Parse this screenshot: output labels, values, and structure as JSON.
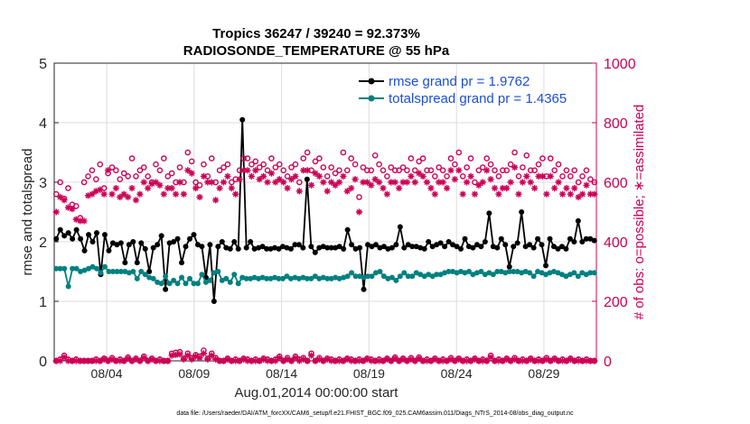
{
  "chart_data": {
    "type": "line",
    "title": "Tropics 36247 / 39240 = 92.373%",
    "subtitle": "RADIOSONDE_TEMPERATURE @ 55 hPa",
    "xlabel": "Aug.01,2014 00:00:00 start",
    "ylabel_left": "rmse and totalspread",
    "ylabel_right": "# of obs: o=possible; ∗=assimilated",
    "ylim_left": [
      0,
      5
    ],
    "ylim_right": [
      0,
      1000
    ],
    "xlim": [
      0,
      31
    ],
    "left_ticks": [
      "0",
      "1",
      "2",
      "3",
      "4",
      "5"
    ],
    "right_ticks": [
      "0",
      "200",
      "400",
      "600",
      "800",
      "1000"
    ],
    "x_ticks": [
      {
        "x": 3,
        "label": "08/04"
      },
      {
        "x": 8,
        "label": "08/09"
      },
      {
        "x": 13,
        "label": "08/14"
      },
      {
        "x": 18,
        "label": "08/19"
      },
      {
        "x": 23,
        "label": "08/24"
      },
      {
        "x": 28,
        "label": "08/29"
      }
    ],
    "legend": [
      {
        "name": "rmse grand pr = 1.9762",
        "color": "#000000"
      },
      {
        "name": "totalspread grand pr = 1.4365",
        "color": "#008080"
      }
    ],
    "series": [
      {
        "name": "rmse",
        "axis": "left",
        "color": "#000000",
        "values": [
          2.05,
          2.2,
          2.1,
          2.15,
          2.05,
          2.2,
          2.05,
          1.85,
          2.12,
          2.0,
          2.15,
          1.45,
          2.12,
          1.85,
          1.98,
          1.95,
          1.98,
          1.65,
          1.95,
          2.0,
          1.65,
          1.98,
          1.88,
          1.5,
          1.9,
          1.95,
          2.1,
          1.2,
          1.98,
          2.0,
          2.05,
          1.65,
          1.92,
          2.05,
          2.12,
          1.95,
          1.92,
          1.4,
          1.95,
          1.0,
          1.92,
          2.0,
          1.9,
          1.88,
          2.0,
          1.88,
          4.05,
          1.9,
          2.0,
          1.88,
          1.9,
          1.92,
          1.88,
          1.88,
          1.9,
          1.88,
          1.92,
          1.9,
          1.88,
          1.95,
          1.95,
          1.9,
          3.05,
          1.92,
          1.82,
          1.9,
          1.92,
          1.9,
          1.9,
          1.9,
          1.92,
          1.88,
          2.2,
          1.95,
          1.88,
          1.9,
          1.2,
          1.95,
          1.92,
          1.95,
          1.9,
          1.92,
          1.88,
          1.9,
          1.95,
          2.25,
          1.9,
          1.95,
          1.92,
          1.92,
          1.9,
          1.88,
          2.0,
          1.92,
          1.95,
          1.98,
          1.92,
          2.0,
          1.95,
          1.92,
          1.88,
          2.05,
          1.92,
          1.9,
          1.95,
          1.92,
          2.0,
          2.48,
          1.92,
          1.9,
          2.05,
          1.95,
          1.58,
          1.92,
          1.98,
          2.5,
          1.92,
          1.95,
          1.9,
          2.05,
          1.95,
          1.6,
          2.05,
          1.92,
          1.88,
          1.92,
          1.88,
          2.05,
          2.0,
          2.35,
          2.0,
          2.05,
          2.05,
          2.02
        ]
      },
      {
        "name": "totalspread",
        "axis": "left",
        "color": "#008080",
        "values": [
          1.55,
          1.55,
          1.55,
          1.25,
          1.55,
          1.55,
          1.5,
          1.52,
          1.55,
          1.58,
          1.55,
          1.48,
          1.58,
          1.5,
          1.5,
          1.5,
          1.5,
          1.5,
          1.48,
          1.5,
          1.38,
          1.5,
          1.45,
          1.4,
          1.38,
          1.32,
          1.3,
          1.42,
          1.3,
          1.35,
          1.3,
          1.4,
          1.3,
          1.38,
          1.3,
          1.3,
          1.45,
          1.32,
          1.35,
          1.48,
          1.5,
          1.35,
          1.38,
          1.32,
          1.45,
          1.3,
          1.4,
          1.38,
          1.38,
          1.4,
          1.38,
          1.4,
          1.38,
          1.38,
          1.4,
          1.38,
          1.38,
          1.42,
          1.38,
          1.4,
          1.38,
          1.4,
          1.38,
          1.38,
          1.42,
          1.38,
          1.4,
          1.38,
          1.38,
          1.4,
          1.38,
          1.4,
          1.42,
          1.48,
          1.42,
          1.42,
          1.4,
          1.42,
          1.42,
          1.48,
          1.5,
          1.42,
          1.38,
          1.4,
          1.35,
          1.42,
          1.48,
          1.42,
          1.42,
          1.48,
          1.45,
          1.42,
          1.45,
          1.42,
          1.45,
          1.45,
          1.48,
          1.5,
          1.5,
          1.48,
          1.5,
          1.48,
          1.5,
          1.45,
          1.48,
          1.5,
          1.45,
          1.48,
          1.45,
          1.5,
          1.5,
          1.48,
          1.5,
          1.5,
          1.5,
          1.48,
          1.5,
          1.48,
          1.42,
          1.5,
          1.48,
          1.45,
          1.48,
          1.5,
          1.48,
          1.45,
          1.42,
          1.45,
          1.48,
          1.42,
          1.48,
          1.45,
          1.48,
          1.48
        ]
      },
      {
        "name": "possible",
        "axis": "right",
        "color": "#cc0055",
        "marker": "circle",
        "values": [
          560,
          600,
          545,
          580,
          525,
          520,
          480,
          600,
          620,
          640,
          610,
          660,
          580,
          630,
          650,
          640,
          610,
          630,
          620,
          680,
          620,
          640,
          650,
          620,
          600,
          660,
          640,
          680,
          620,
          630,
          600,
          650,
          600,
          700,
          670,
          600,
          590,
          660,
          620,
          680,
          600,
          640,
          650,
          660,
          600,
          610,
          640,
          680,
          680,
          660,
          670,
          650,
          660,
          640,
          680,
          650,
          660,
          640,
          620,
          650,
          660,
          600,
          680,
          700,
          640,
          670,
          680,
          650,
          620,
          650,
          630,
          640,
          700,
          640,
          680,
          660,
          550,
          650,
          640,
          640,
          690,
          660,
          640,
          620,
          650,
          640,
          640,
          650,
          640,
          680,
          640,
          670,
          680,
          640,
          640,
          620,
          650,
          640,
          620,
          680,
          660,
          700,
          620,
          650,
          680,
          600,
          640,
          650,
          680,
          660,
          640,
          620,
          640,
          640,
          660,
          700,
          620,
          650,
          690,
          640,
          640,
          660,
          680,
          620,
          680,
          640,
          660,
          620,
          640,
          620,
          640,
          600,
          620,
          640,
          610,
          600
        ]
      },
      {
        "name": "assimilated",
        "axis": "right",
        "color": "#cc0055",
        "marker": "star",
        "values": [
          500,
          550,
          540,
          515,
          510,
          475,
          470,
          470,
          555,
          560,
          570,
          575,
          560,
          640,
          560,
          580,
          550,
          560,
          550,
          580,
          540,
          560,
          600,
          580,
          595,
          600,
          590,
          560,
          580,
          580,
          560,
          600,
          560,
          640,
          630,
          580,
          550,
          620,
          600,
          600,
          540,
          580,
          600,
          620,
          580,
          560,
          610,
          640,
          640,
          620,
          640,
          610,
          620,
          600,
          630,
          600,
          610,
          600,
          580,
          610,
          620,
          570,
          640,
          640,
          590,
          630,
          620,
          600,
          570,
          600,
          590,
          600,
          620,
          570,
          580,
          610,
          500,
          600,
          600,
          590,
          610,
          600,
          580,
          560,
          600,
          600,
          580,
          600,
          600,
          620,
          600,
          630,
          620,
          600,
          580,
          560,
          600,
          600,
          580,
          640,
          610,
          640,
          560,
          600,
          620,
          560,
          590,
          600,
          640,
          610,
          580,
          560,
          580,
          580,
          600,
          650,
          560,
          600,
          620,
          600,
          580,
          620,
          620,
          560,
          620,
          580,
          600,
          560,
          580,
          560,
          580,
          550,
          560,
          590,
          560,
          560
        ]
      },
      {
        "name": "possible_bottom",
        "axis": "right",
        "color": "#cc0055",
        "marker": "circle",
        "values": [
          0,
          5,
          18,
          5,
          0,
          5,
          0,
          0,
          0,
          0,
          5,
          0,
          8,
          0,
          10,
          0,
          5,
          0,
          12,
          0,
          8,
          0,
          15,
          0,
          8,
          0,
          5,
          0,
          0,
          25,
          28,
          30,
          8,
          25,
          10,
          20,
          15,
          35,
          8,
          25,
          10,
          0,
          0,
          8,
          0,
          5,
          0,
          8,
          5,
          0,
          5,
          0,
          8,
          5,
          0,
          5,
          15,
          0,
          10,
          0,
          15,
          5,
          10,
          0,
          25,
          0,
          10,
          0,
          8,
          5,
          0,
          5,
          0,
          8,
          5,
          0,
          5,
          0,
          8,
          5,
          0,
          5,
          0,
          8,
          0,
          12,
          0,
          8,
          0,
          10,
          0,
          12,
          0,
          5,
          0,
          8,
          0,
          5,
          0,
          10,
          0,
          8,
          0,
          5,
          0,
          8,
          0,
          5,
          0,
          18,
          0,
          5,
          0,
          8,
          0,
          10,
          0,
          5,
          0,
          8,
          0,
          5,
          0,
          10,
          0,
          8,
          0,
          5,
          0,
          8,
          0,
          5,
          0,
          5,
          0,
          0
        ]
      },
      {
        "name": "assimilated_bottom",
        "axis": "right",
        "color": "#cc0055",
        "marker": "star",
        "values": [
          0,
          0,
          12,
          0,
          0,
          0,
          0,
          0,
          0,
          0,
          0,
          0,
          5,
          0,
          5,
          0,
          0,
          0,
          8,
          0,
          5,
          0,
          10,
          0,
          5,
          0,
          0,
          0,
          0,
          18,
          20,
          22,
          5,
          18,
          5,
          15,
          10,
          25,
          5,
          18,
          5,
          0,
          0,
          5,
          0,
          0,
          0,
          5,
          0,
          0,
          0,
          0,
          5,
          0,
          0,
          0,
          10,
          0,
          5,
          0,
          10,
          0,
          5,
          0,
          18,
          0,
          5,
          0,
          5,
          0,
          0,
          0,
          0,
          5,
          0,
          0,
          0,
          0,
          5,
          0,
          0,
          0,
          0,
          5,
          0,
          8,
          0,
          5,
          0,
          5,
          0,
          8,
          0,
          0,
          0,
          5,
          0,
          0,
          0,
          5,
          0,
          5,
          0,
          0,
          0,
          5,
          0,
          0,
          0,
          12,
          0,
          0,
          0,
          5,
          0,
          5,
          0,
          0,
          0,
          5,
          0,
          0,
          0,
          5,
          0,
          5,
          0,
          0,
          0,
          5,
          0,
          0,
          0,
          0,
          0,
          0
        ]
      }
    ]
  },
  "footer": {
    "data_file": "data file: /Users/raeder/DAI/ATM_forcXX/CAM6_setup/f.e21.FHIST_BGC.f09_025.CAM6assim.011/Diags_NTrS_2014-08/obs_diag_output.nc"
  },
  "colors": {
    "axis": "#262626",
    "right_axis": "#cc0055",
    "grid": "#dcdcdc",
    "rmse": "#000000",
    "spread": "#008080",
    "obs": "#cc0055",
    "legend_text": "#1a4ed6"
  }
}
